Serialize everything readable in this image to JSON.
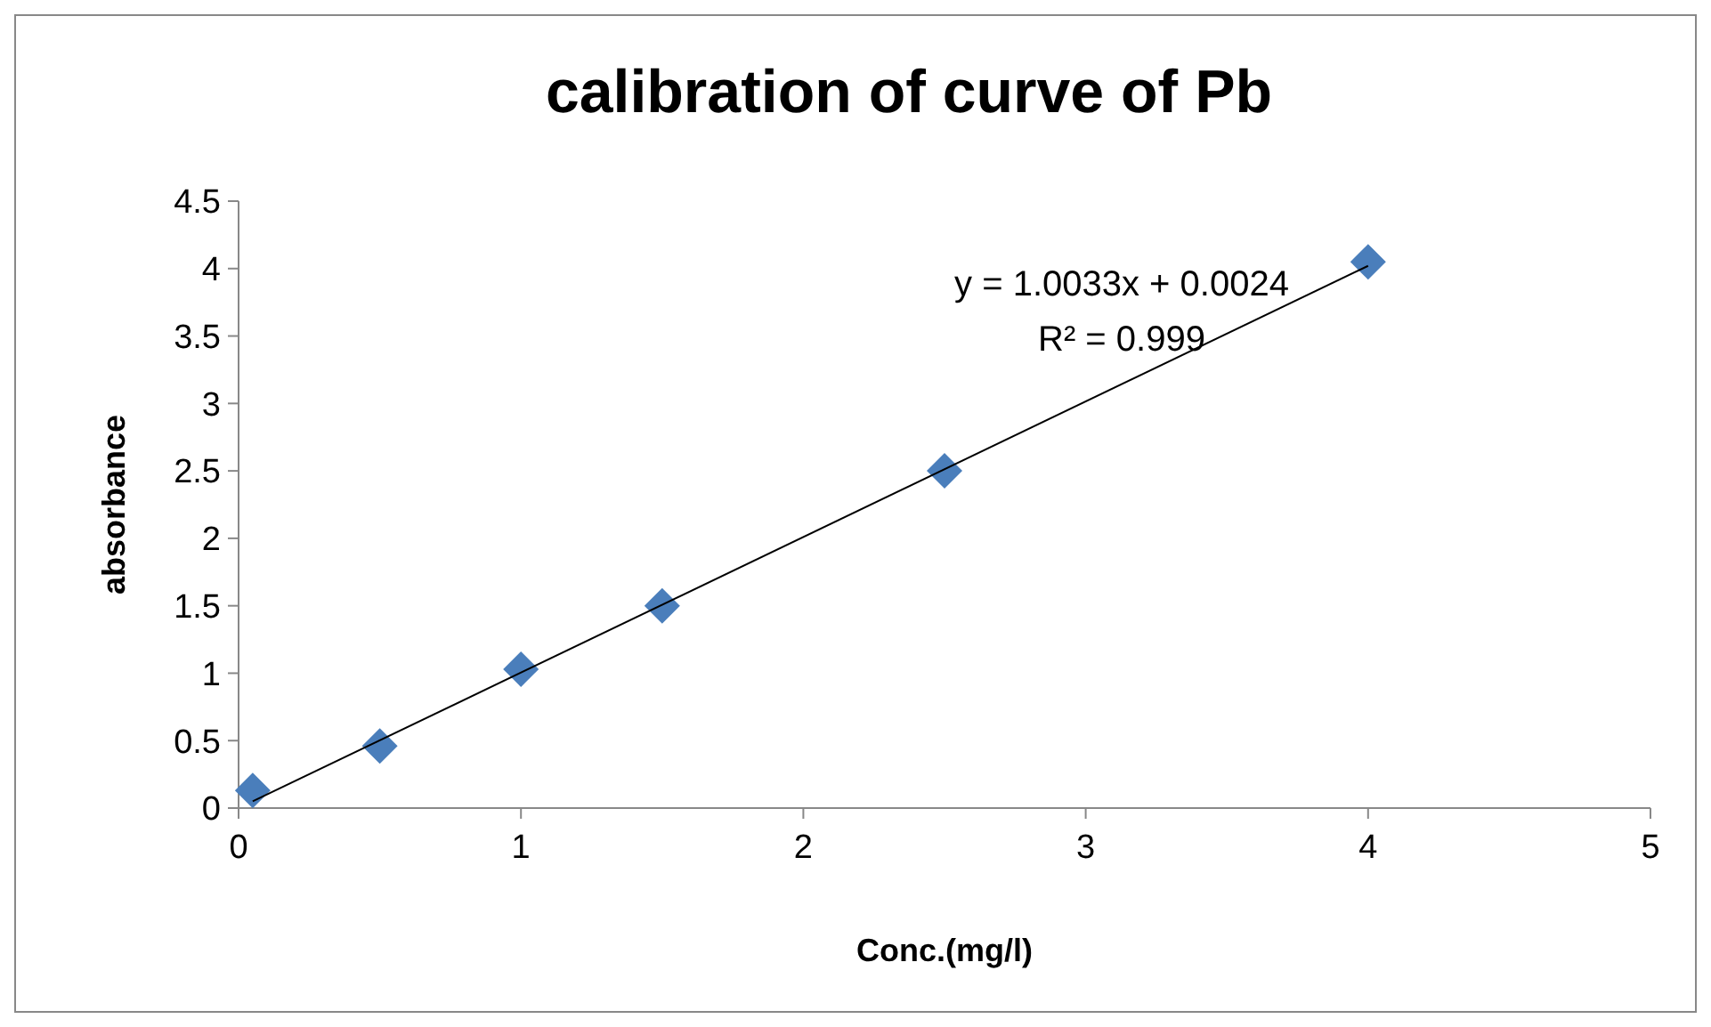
{
  "chart_data": {
    "type": "scatter",
    "title": "calibration of curve of Pb",
    "xlabel": "Conc.(mg/l)",
    "ylabel": "absorbance",
    "xlim": [
      0,
      5
    ],
    "xticks": [
      0,
      1,
      2,
      3,
      4,
      5
    ],
    "ylim": [
      0,
      4.5
    ],
    "yticks": [
      0,
      0.5,
      1,
      1.5,
      2,
      2.5,
      3,
      3.5,
      4,
      4.5
    ],
    "grid": false,
    "marker": "diamond",
    "series": [
      {
        "color": "#4a7ebb",
        "x": [
          0.05,
          0.5,
          1,
          1.5,
          2.5,
          4
        ],
        "values": [
          0.13,
          0.46,
          1.03,
          1.5,
          2.5,
          4.05
        ]
      },
      {
        "type": "line",
        "color": "#000000",
        "x": [
          0.05,
          4
        ],
        "values": [
          0.05,
          4.02
        ],
        "marker": "none",
        "line_style": "solid"
      }
    ],
    "annotations": [
      "y = 1.0033x + 0.0024",
      "R² = 0.999"
    ]
  }
}
